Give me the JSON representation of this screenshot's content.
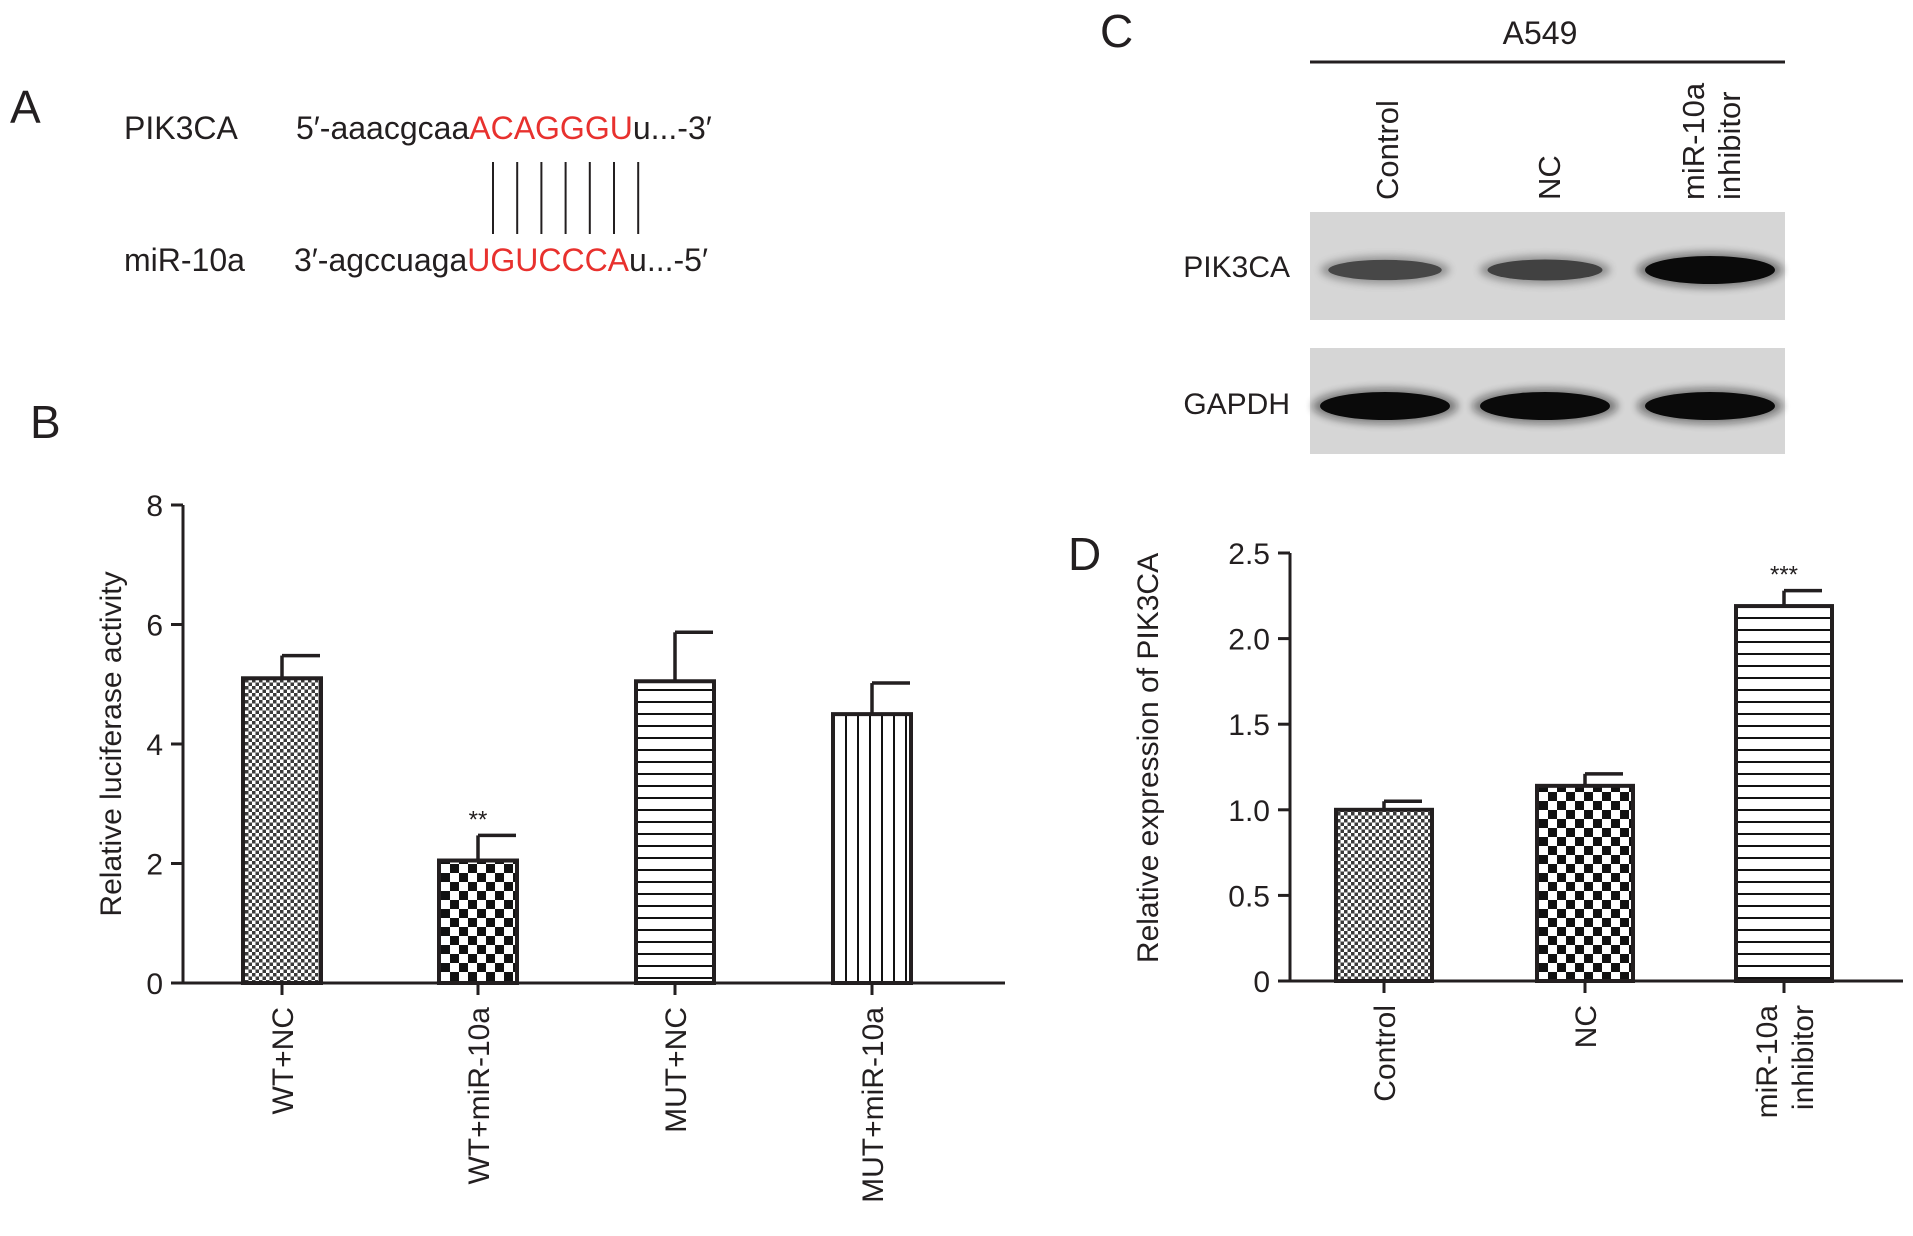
{
  "panels": {
    "A": "A",
    "B": "B",
    "C": "C",
    "D": "D"
  },
  "panel_a": {
    "gene_label": "PIK3CA",
    "gene_prefix": "5′-aaacgcaa",
    "gene_seed": "ACAGGGU",
    "gene_suffix": "u...-3′",
    "mirna_label": "miR-10a",
    "mirna_prefix": "3′-agccuaga",
    "mirna_seed": "UGUCCCA",
    "mirna_suffix": "u...-5′",
    "base_pairs": 7
  },
  "panel_c": {
    "cell_line": "A549",
    "lane_labels": [
      "Control",
      "NC",
      "miR-10a\ninhibitor"
    ],
    "blots": [
      {
        "label": "PIK3CA",
        "band_intensity": [
          0.45,
          0.5,
          1.0
        ]
      },
      {
        "label": "GAPDH",
        "band_intensity": [
          1.0,
          1.0,
          1.0
        ]
      }
    ]
  },
  "chart_data": [
    {
      "type": "bar",
      "panel": "B",
      "categories": [
        "WT+NC",
        "WT+miR-10a",
        "MUT+NC",
        "MUT+miR-10a"
      ],
      "values": [
        5.1,
        2.05,
        5.05,
        4.5
      ],
      "errors": [
        0.38,
        0.42,
        0.82,
        0.52
      ],
      "significance": [
        "",
        "**",
        "",
        ""
      ],
      "patterns": [
        "fine-check",
        "checker",
        "hlines",
        "vlines"
      ],
      "ylabel": "Relative luciferase activity",
      "ylim": [
        0,
        8
      ],
      "yticks": [
        "0",
        "2",
        "4",
        "6",
        "8"
      ]
    },
    {
      "type": "bar",
      "panel": "D",
      "categories": [
        "Control",
        "NC",
        "miR-10a\ninhibitor"
      ],
      "values": [
        1.0,
        1.14,
        2.19
      ],
      "errors": [
        0.05,
        0.07,
        0.09
      ],
      "significance": [
        "",
        "",
        "***"
      ],
      "patterns": [
        "fine-check",
        "checker",
        "hlines"
      ],
      "ylabel": "Relative expression of PIK3CA",
      "ylim": [
        0,
        2.5
      ],
      "yticks": [
        "0",
        "0.5",
        "1.0",
        "1.5",
        "2.0",
        "2.5"
      ]
    }
  ]
}
